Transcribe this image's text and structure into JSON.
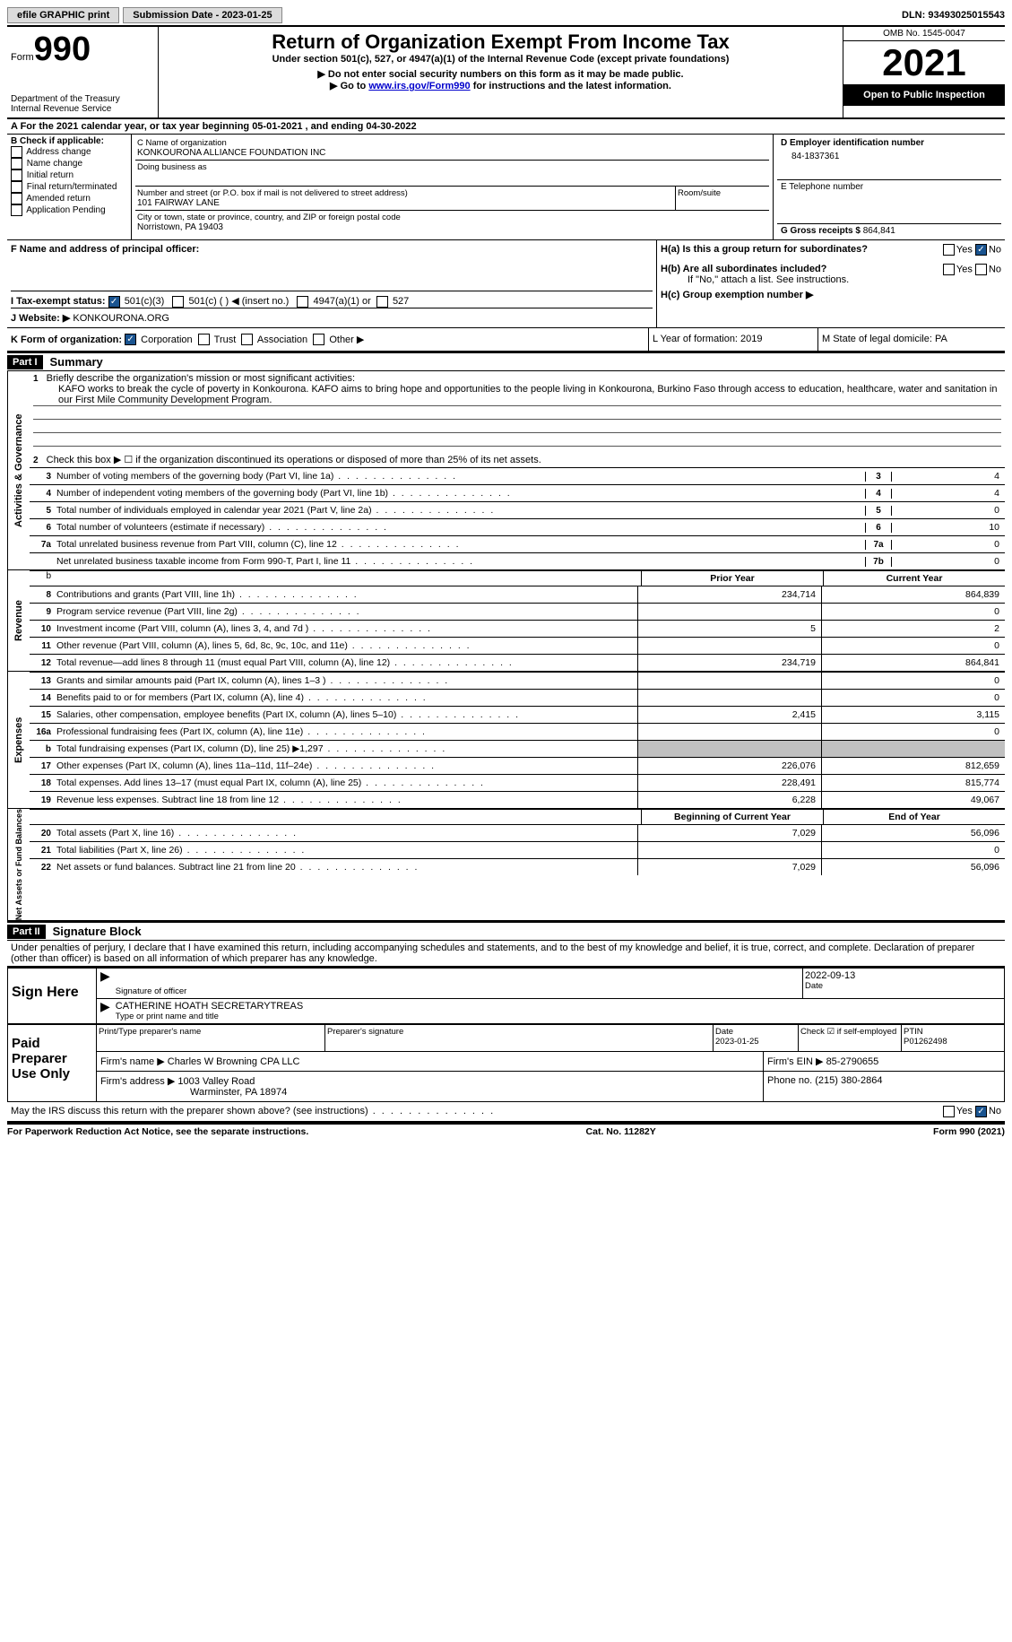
{
  "top": {
    "efile": "efile GRAPHIC print",
    "submission_label": "Submission Date - 2023-01-25",
    "dln_label": "DLN: 93493025015543"
  },
  "header": {
    "form_label": "Form",
    "form_number": "990",
    "dept": "Department of the Treasury",
    "irs": "Internal Revenue Service",
    "title": "Return of Organization Exempt From Income Tax",
    "subtitle": "Under section 501(c), 527, or 4947(a)(1) of the Internal Revenue Code (except private foundations)",
    "note1": "▶ Do not enter social security numbers on this form as it may be made public.",
    "note2_pre": "▶ Go to ",
    "note2_link": "www.irs.gov/Form990",
    "note2_post": " for instructions and the latest information.",
    "omb": "OMB No. 1545-0047",
    "year": "2021",
    "inspection": "Open to Public Inspection"
  },
  "period": {
    "line": "A For the 2021 calendar year, or tax year beginning 05-01-2021    , and ending 04-30-2022"
  },
  "boxB": {
    "title": "B Check if applicable:",
    "opts": [
      "Address change",
      "Name change",
      "Initial return",
      "Final return/terminated",
      "Amended return",
      "Application Pending"
    ]
  },
  "boxC": {
    "name_label": "C Name of organization",
    "name": "KONKOURONA ALLIANCE FOUNDATION INC",
    "dba_label": "Doing business as",
    "street_label": "Number and street (or P.O. box if mail is not delivered to street address)",
    "room_label": "Room/suite",
    "street": "101 FAIRWAY LANE",
    "city_label": "City or town, state or province, country, and ZIP or foreign postal code",
    "city": "Norristown, PA  19403"
  },
  "boxD": {
    "label": "D Employer identification number",
    "value": "84-1837361"
  },
  "boxE": {
    "label": "E Telephone number",
    "value": ""
  },
  "boxG": {
    "label": "G Gross receipts $",
    "value": "864,841"
  },
  "boxF": {
    "label": "F Name and address of principal officer:"
  },
  "boxH": {
    "ha": "H(a)  Is this a group return for subordinates?",
    "hb": "H(b)  Are all subordinates included?",
    "hb_note": "If \"No,\" attach a list. See instructions.",
    "hc": "H(c)  Group exemption number ▶",
    "yes": "Yes",
    "no": "No"
  },
  "boxI": {
    "label": "I    Tax-exempt status:",
    "o1": "501(c)(3)",
    "o2": "501(c) (  ) ◀ (insert no.)",
    "o3": "4947(a)(1) or",
    "o4": "527"
  },
  "boxJ": {
    "label": "J   Website: ▶",
    "value": "KONKOURONA.ORG"
  },
  "boxK": {
    "label": "K Form of organization:",
    "o1": "Corporation",
    "o2": "Trust",
    "o3": "Association",
    "o4": "Other ▶"
  },
  "boxL": {
    "label": "L Year of formation: 2019"
  },
  "boxM": {
    "label": "M State of legal domicile: PA"
  },
  "part1": {
    "header": "Part I",
    "title": "Summary",
    "l1_label": "Briefly describe the organization's mission or most significant activities:",
    "l1_text": "KAFO works to break the cycle of poverty in Konkourona. KAFO aims to bring hope and opportunities to the people living in Konkourona, Burkino Faso through access to education, healthcare, water and sanitation in our First Mile Community Development Program.",
    "l2": "Check this box ▶ ☐  if the organization discontinued its operations or disposed of more than 25% of its net assets.",
    "sections": {
      "activities": "Activities & Governance",
      "revenue": "Revenue",
      "expenses": "Expenses",
      "netassets": "Net Assets or Fund Balances"
    },
    "rows_gov": [
      {
        "num": "3",
        "text": "Number of voting members of the governing body (Part VI, line 1a)",
        "box": "3",
        "val": "4"
      },
      {
        "num": "4",
        "text": "Number of independent voting members of the governing body (Part VI, line 1b)",
        "box": "4",
        "val": "4"
      },
      {
        "num": "5",
        "text": "Total number of individuals employed in calendar year 2021 (Part V, line 2a)",
        "box": "5",
        "val": "0"
      },
      {
        "num": "6",
        "text": "Total number of volunteers (estimate if necessary)",
        "box": "6",
        "val": "10"
      },
      {
        "num": "7a",
        "text": "Total unrelated business revenue from Part VIII, column (C), line 12",
        "box": "7a",
        "val": "0"
      },
      {
        "num": "",
        "text": "Net unrelated business taxable income from Form 990-T, Part I, line 11",
        "box": "7b",
        "val": "0"
      }
    ],
    "col_prior": "Prior Year",
    "col_current": "Current Year",
    "rows_rev": [
      {
        "num": "8",
        "text": "Contributions and grants (Part VIII, line 1h)",
        "prior": "234,714",
        "current": "864,839"
      },
      {
        "num": "9",
        "text": "Program service revenue (Part VIII, line 2g)",
        "prior": "",
        "current": "0"
      },
      {
        "num": "10",
        "text": "Investment income (Part VIII, column (A), lines 3, 4, and 7d )",
        "prior": "5",
        "current": "2"
      },
      {
        "num": "11",
        "text": "Other revenue (Part VIII, column (A), lines 5, 6d, 8c, 9c, 10c, and 11e)",
        "prior": "",
        "current": "0"
      },
      {
        "num": "12",
        "text": "Total revenue—add lines 8 through 11 (must equal Part VIII, column (A), line 12)",
        "prior": "234,719",
        "current": "864,841"
      }
    ],
    "rows_exp": [
      {
        "num": "13",
        "text": "Grants and similar amounts paid (Part IX, column (A), lines 1–3 )",
        "prior": "",
        "current": "0"
      },
      {
        "num": "14",
        "text": "Benefits paid to or for members (Part IX, column (A), line 4)",
        "prior": "",
        "current": "0"
      },
      {
        "num": "15",
        "text": "Salaries, other compensation, employee benefits (Part IX, column (A), lines 5–10)",
        "prior": "2,415",
        "current": "3,115"
      },
      {
        "num": "16a",
        "text": "Professional fundraising fees (Part IX, column (A), line 11e)",
        "prior": "",
        "current": "0"
      },
      {
        "num": "b",
        "text": "Total fundraising expenses (Part IX, column (D), line 25) ▶1,297",
        "prior": "SHADED",
        "current": "SHADED"
      },
      {
        "num": "17",
        "text": "Other expenses (Part IX, column (A), lines 11a–11d, 11f–24e)",
        "prior": "226,076",
        "current": "812,659"
      },
      {
        "num": "18",
        "text": "Total expenses. Add lines 13–17 (must equal Part IX, column (A), line 25)",
        "prior": "228,491",
        "current": "815,774"
      },
      {
        "num": "19",
        "text": "Revenue less expenses. Subtract line 18 from line 12",
        "prior": "6,228",
        "current": "49,067"
      }
    ],
    "col_begin": "Beginning of Current Year",
    "col_end": "End of Year",
    "rows_net": [
      {
        "num": "20",
        "text": "Total assets (Part X, line 16)",
        "prior": "7,029",
        "current": "56,096"
      },
      {
        "num": "21",
        "text": "Total liabilities (Part X, line 26)",
        "prior": "",
        "current": "0"
      },
      {
        "num": "22",
        "text": "Net assets or fund balances. Subtract line 21 from line 20",
        "prior": "7,029",
        "current": "56,096"
      }
    ]
  },
  "part2": {
    "header": "Part II",
    "title": "Signature Block",
    "declaration": "Under penalties of perjury, I declare that I have examined this return, including accompanying schedules and statements, and to the best of my knowledge and belief, it is true, correct, and complete. Declaration of preparer (other than officer) is based on all information of which preparer has any knowledge.",
    "sign_here": "Sign Here",
    "sig_officer": "Signature of officer",
    "sig_date": "2022-09-13",
    "date_label": "Date",
    "officer_name": "CATHERINE HOATH  SECRETARYTREAS",
    "name_label": "Type or print name and title",
    "paid_prep": "Paid Preparer Use Only",
    "prep_name_label": "Print/Type preparer's name",
    "prep_sig_label": "Preparer's signature",
    "prep_date_label": "Date",
    "prep_date": "2023-01-25",
    "check_if": "Check ☑ if self-employed",
    "ptin_label": "PTIN",
    "ptin": "P01262498",
    "firm_name_label": "Firm's name    ▶",
    "firm_name": "Charles W Browning CPA LLC",
    "firm_ein_label": "Firm's EIN ▶",
    "firm_ein": "85-2790655",
    "firm_addr_label": "Firm's address ▶",
    "firm_addr1": "1003 Valley Road",
    "firm_addr2": "Warminster, PA  18974",
    "phone_label": "Phone no.",
    "phone": "(215) 380-2864",
    "discuss": "May the IRS discuss this return with the preparer shown above? (see instructions)"
  },
  "footer": {
    "left": "For Paperwork Reduction Act Notice, see the separate instructions.",
    "center": "Cat. No. 11282Y",
    "right": "Form 990 (2021)"
  },
  "colors": {
    "text": "#000000",
    "bg": "#ffffff",
    "link": "#0000cc",
    "check": "#1a5490",
    "shade": "#c0c0c0"
  }
}
